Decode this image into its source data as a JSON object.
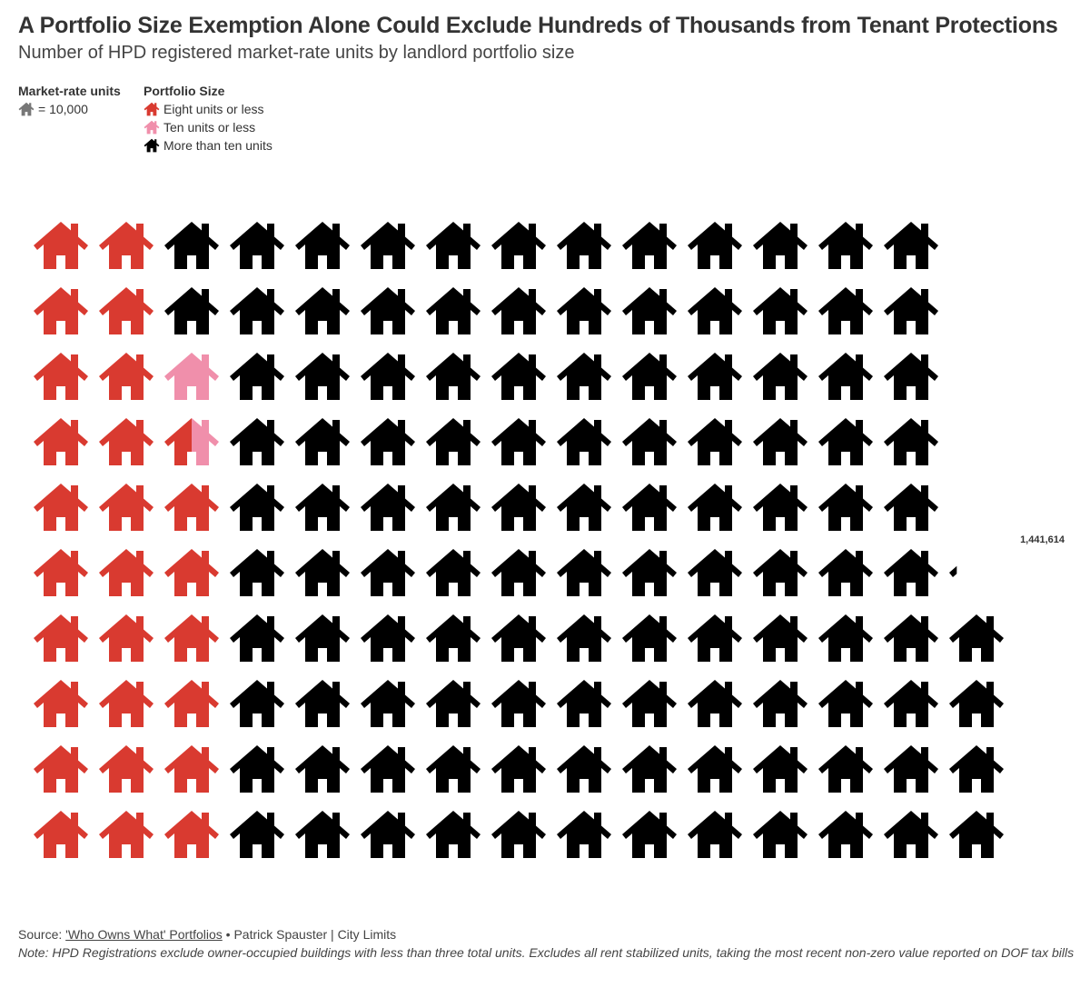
{
  "title": "A Portfolio Size Exemption Alone Could Exclude Hundreds of Thousands from Tenant Protections",
  "subtitle": "Number of HPD registered market-rate units by landlord portfolio size",
  "legend": {
    "units_heading": "Market-rate units",
    "unit_scale": "= 10,000",
    "size_heading": "Portfolio Size",
    "items": [
      {
        "label": "Eight units or less",
        "color": "#d93a30"
      },
      {
        "label": "Ten units or less",
        "color": "#f08fab"
      },
      {
        "label": "More than ten units",
        "color": "#000000"
      }
    ],
    "scale_icon_color": "#777777"
  },
  "chart_data": {
    "type": "pictogram",
    "icon": "house-icon",
    "units_per_icon": 10000,
    "rows": 10,
    "fill_direction": "columns, bottom to top",
    "series": [
      {
        "name": "Eight units or less",
        "value": 265000,
        "color": "#d93a30"
      },
      {
        "name": "Ten units or less",
        "value": 15000,
        "color": "#f08fab"
      },
      {
        "name": "More than ten units",
        "value": 1161614,
        "color": "#000000"
      }
    ],
    "total": 1441614,
    "total_label": "1,441,614"
  },
  "footer": {
    "source_prefix": "Source: ",
    "source_link": "'Who Owns What' Portfolios",
    "source_suffix": " • Patrick Spauster | City Limits",
    "note": "Note: HPD Registrations exclude owner-occupied buildings with less than three total units. Excludes all rent stabilized units, taking the most recent non-zero value reported on DOF tax bills"
  }
}
